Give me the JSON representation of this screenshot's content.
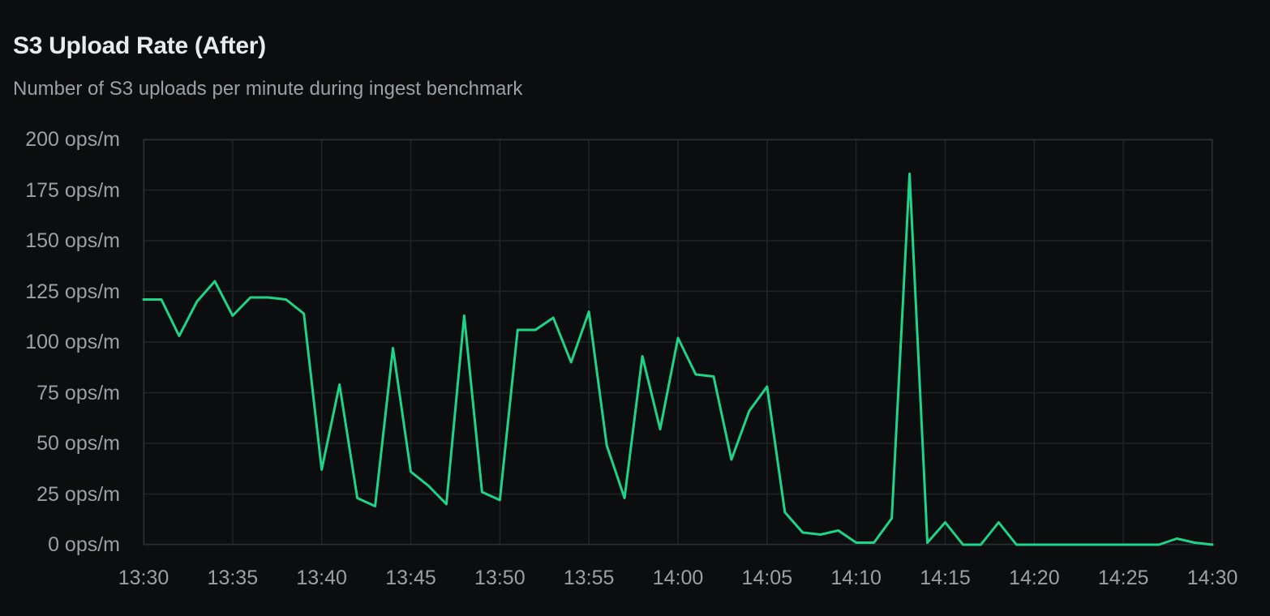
{
  "panel": {
    "title": "S3 Upload Rate (After)",
    "subtitle": "Number of S3 uploads per minute during ingest benchmark"
  },
  "chart_data": {
    "type": "line",
    "title": "S3 Upload Rate (After)",
    "subtitle": "Number of S3 uploads per minute during ingest benchmark",
    "x_start": "13:30",
    "x_end": "14:30",
    "x_step_minutes": 1,
    "x_tick_labels": [
      "13:30",
      "13:35",
      "13:40",
      "13:45",
      "13:50",
      "13:55",
      "14:00",
      "14:05",
      "14:10",
      "14:15",
      "14:20",
      "14:25",
      "14:30"
    ],
    "y_ticks": [
      0,
      25,
      50,
      75,
      100,
      125,
      150,
      175,
      200
    ],
    "y_tick_suffix": " ops/m",
    "ylim": [
      0,
      200
    ],
    "grid": true,
    "legend": "none",
    "series": [
      {
        "name": "S3 uploads per minute",
        "color": "#1ed489",
        "values": [
          121,
          121,
          103,
          120,
          130,
          113,
          122,
          122,
          121,
          114,
          37,
          79,
          23,
          19,
          97,
          36,
          29,
          20,
          113,
          26,
          22,
          106,
          106,
          112,
          90,
          115,
          49,
          23,
          93,
          57,
          102,
          84,
          83,
          42,
          66,
          78,
          16,
          6,
          5,
          7,
          1,
          1,
          13,
          183,
          1,
          11,
          0,
          0,
          11,
          0,
          0,
          0,
          0,
          0,
          0,
          0,
          0,
          0,
          3,
          1,
          0
        ]
      }
    ],
    "colors": {
      "background": "#0c0d0e",
      "grid": "#212428",
      "border": "#2a2d33",
      "title": "#e8eaed",
      "subtitle": "#9aa0a6",
      "tick_label": "#9aa0a6",
      "line": "#1ed489"
    }
  }
}
